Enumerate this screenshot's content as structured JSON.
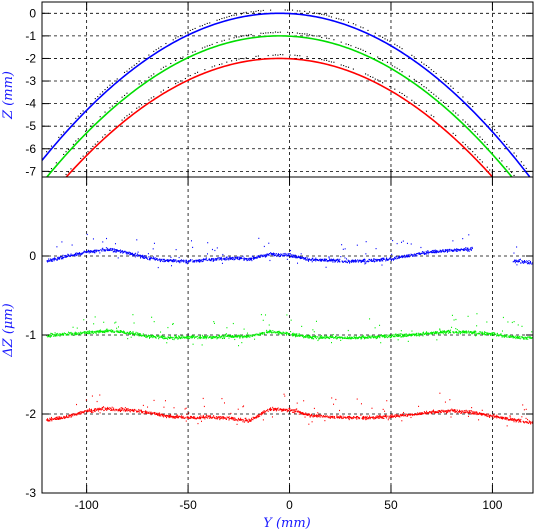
{
  "chart_data": [
    {
      "type": "line",
      "title": "",
      "xlabel": "",
      "ylabel": "Z (mm)",
      "xlim": [
        -122,
        120
      ],
      "ylim": [
        -7.25,
        0.5
      ],
      "grid": true,
      "x_ticks": [
        -100,
        -50,
        0,
        50,
        100
      ],
      "y_ticks": [
        0,
        -1,
        -2,
        -3,
        -4,
        -5,
        -6,
        -7
      ],
      "y_tick_labels": [
        "0",
        "-1",
        "-2",
        "-3",
        "-4",
        "-5",
        "-6",
        "-7"
      ],
      "series": [
        {
          "color": "#0000ff",
          "offset": 0,
          "curvature": 0.000476,
          "vertex_x": -5
        },
        {
          "color": "#00dd00",
          "offset": -1,
          "curvature": 0.000476,
          "vertex_x": -5
        },
        {
          "color": "#ff0000",
          "offset": -2,
          "curvature": 0.000476,
          "vertex_x": -5
        }
      ],
      "measured_points_color": "#000000",
      "measured_points_offset_mm": 0.18
    },
    {
      "type": "scatter",
      "title": "",
      "xlabel": "Y (mm)",
      "ylabel": "ΔZ (μm)",
      "xlim": [
        -122,
        120
      ],
      "ylim": [
        -3,
        1
      ],
      "grid": true,
      "x_ticks": [
        -100,
        -50,
        0,
        50,
        100
      ],
      "x_tick_labels": [
        "-100",
        "-50",
        "0",
        "50",
        "100"
      ],
      "y_ticks": [
        0,
        -1,
        -2,
        -3
      ],
      "y_tick_labels": [
        "0",
        "-1",
        "-2",
        "-3"
      ],
      "series": [
        {
          "color": "#0000ff",
          "offset": 0,
          "profile_x": [
            -120,
            -110,
            -100,
            -90,
            -80,
            -70,
            -60,
            -50,
            -40,
            -30,
            -20,
            -10,
            0,
            10,
            20,
            30,
            40,
            50,
            60,
            70,
            80,
            90,
            100,
            110,
            120
          ],
          "profile_y": [
            -0.06,
            0.0,
            0.06,
            0.09,
            0.05,
            -0.02,
            -0.05,
            -0.06,
            -0.04,
            -0.02,
            -0.03,
            0.03,
            0.02,
            -0.04,
            -0.05,
            -0.06,
            -0.05,
            -0.03,
            0.02,
            0.06,
            0.08,
            0.1,
            null,
            -0.06,
            -0.08
          ]
        },
        {
          "color": "#00ee00",
          "offset": -1,
          "profile_x": [
            -120,
            -110,
            -100,
            -90,
            -80,
            -70,
            -60,
            -50,
            -40,
            -30,
            -20,
            -10,
            0,
            10,
            20,
            30,
            40,
            50,
            60,
            70,
            80,
            90,
            100,
            110,
            120
          ],
          "profile_y": [
            0.0,
            0.02,
            0.04,
            0.06,
            0.04,
            -0.01,
            -0.03,
            -0.02,
            -0.02,
            -0.01,
            -0.01,
            0.05,
            0.02,
            -0.02,
            -0.02,
            -0.03,
            -0.02,
            0.0,
            0.01,
            0.03,
            0.05,
            0.04,
            0.02,
            -0.02,
            -0.03
          ]
        },
        {
          "color": "#ff0000",
          "offset": -2,
          "profile_x": [
            -120,
            -110,
            -100,
            -90,
            -80,
            -70,
            -60,
            -50,
            -40,
            -30,
            -20,
            -10,
            0,
            10,
            20,
            30,
            40,
            50,
            60,
            70,
            80,
            90,
            100,
            110,
            120
          ],
          "profile_y": [
            -0.07,
            -0.03,
            0.05,
            0.07,
            0.06,
            0.03,
            -0.02,
            -0.04,
            -0.03,
            -0.05,
            -0.08,
            0.07,
            0.06,
            -0.01,
            -0.03,
            -0.04,
            -0.04,
            -0.02,
            0.0,
            0.03,
            0.05,
            0.03,
            -0.02,
            -0.07,
            -0.1
          ]
        }
      ]
    }
  ]
}
